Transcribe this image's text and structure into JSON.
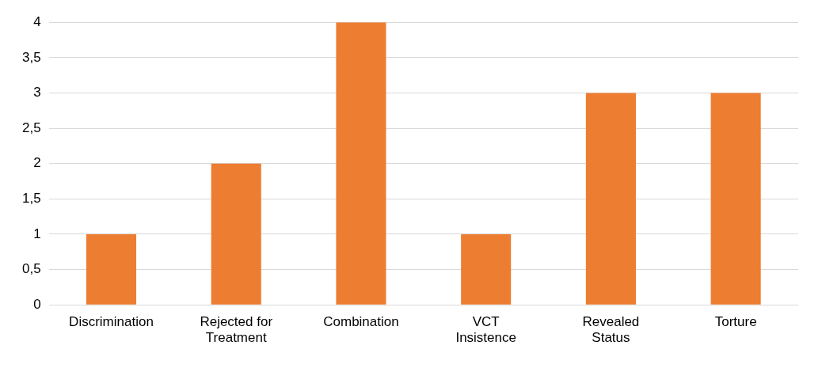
{
  "chart_data": {
    "type": "bar",
    "categories": [
      "Discrimination",
      "Rejected for Treatment",
      "Combination",
      "VCT Insistence",
      "Revealed Status",
      "Torture"
    ],
    "values": [
      1,
      2,
      4,
      1,
      3,
      3
    ],
    "color": "#ed7d31",
    "ylim": [
      0,
      4
    ],
    "yticks": [
      0,
      {
        "value": 0.5,
        "label": "0,5"
      },
      1,
      {
        "value": 1.5,
        "label": "1,5"
      },
      2,
      {
        "value": 2.5,
        "label": "2,5"
      },
      3,
      {
        "value": 3.5,
        "label": "3,5"
      },
      4
    ],
    "grid": "y"
  }
}
